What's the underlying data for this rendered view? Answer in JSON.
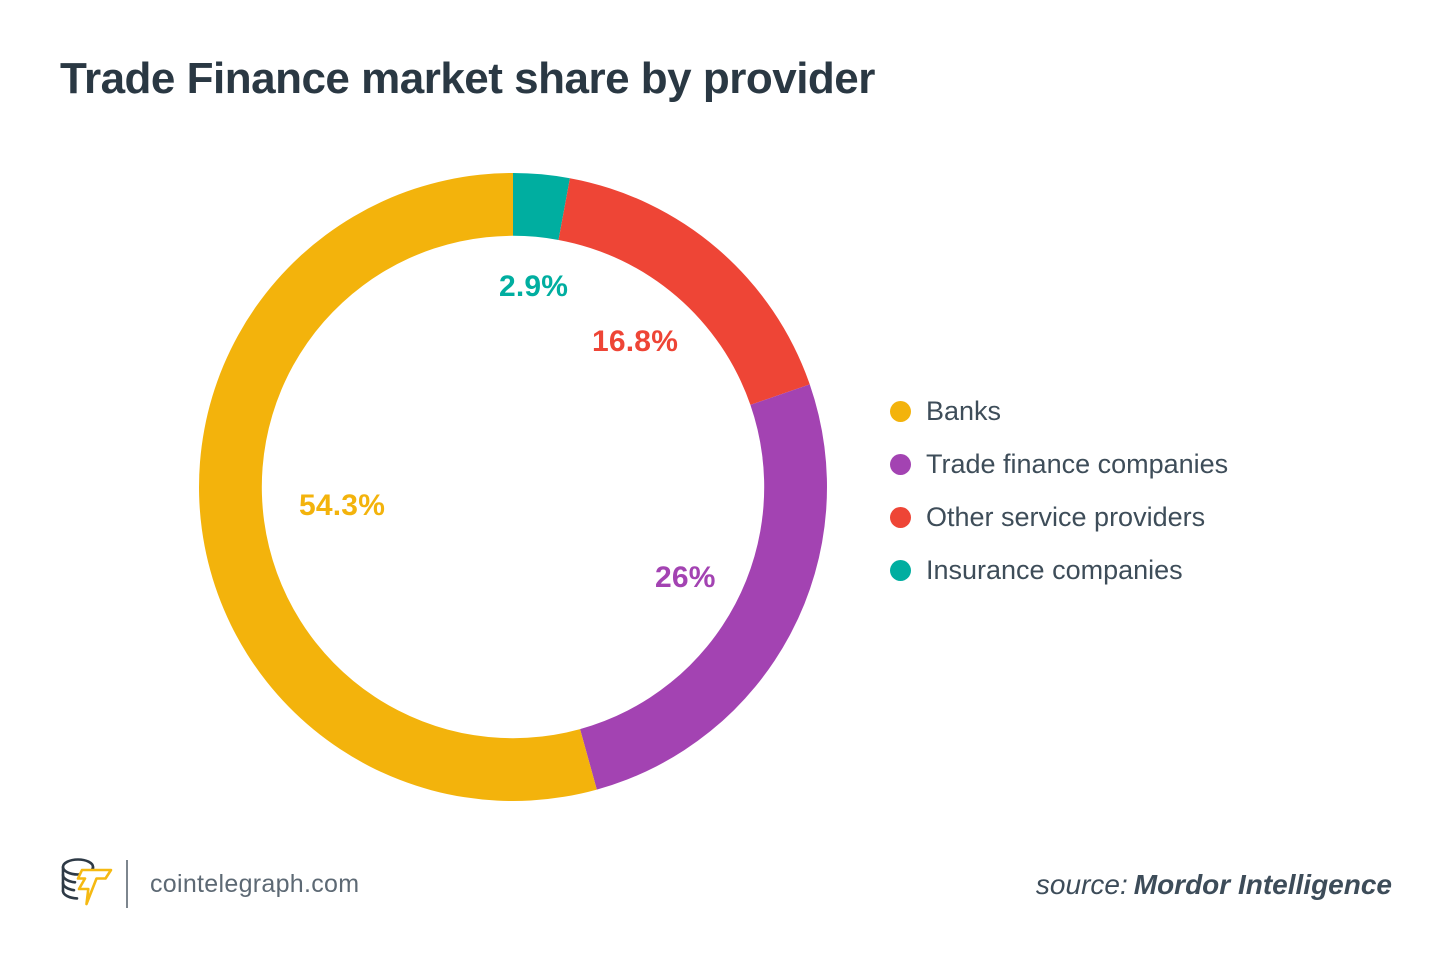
{
  "title": "Trade Finance market share by provider",
  "chart_data": {
    "type": "pie",
    "subtype": "donut",
    "title": "Trade Finance market share by provider",
    "series": [
      {
        "name": "Banks",
        "value": 54.3,
        "label": "54.3%",
        "color": "#F3B30C"
      },
      {
        "name": "Trade finance companies",
        "value": 26,
        "label": "26%",
        "color": "#A343B2"
      },
      {
        "name": "Other service providers",
        "value": 16.8,
        "label": "16.8%",
        "color": "#EE4536"
      },
      {
        "name": "Insurance companies",
        "value": 2.9,
        "label": "2.9%",
        "color": "#00AEA0"
      }
    ],
    "start_angle_deg_from_top": 0,
    "draw_direction": "clockwise starting with smallest slice at 12 o'clock; reversed legend order",
    "inner_radius_ratio": 0.8,
    "legend_position": "right",
    "labels_inside_ring": true
  },
  "footer": {
    "brand_domain": "cointelegraph.com",
    "source_prefix": "source:",
    "source_name": "Mordor Intelligence"
  }
}
